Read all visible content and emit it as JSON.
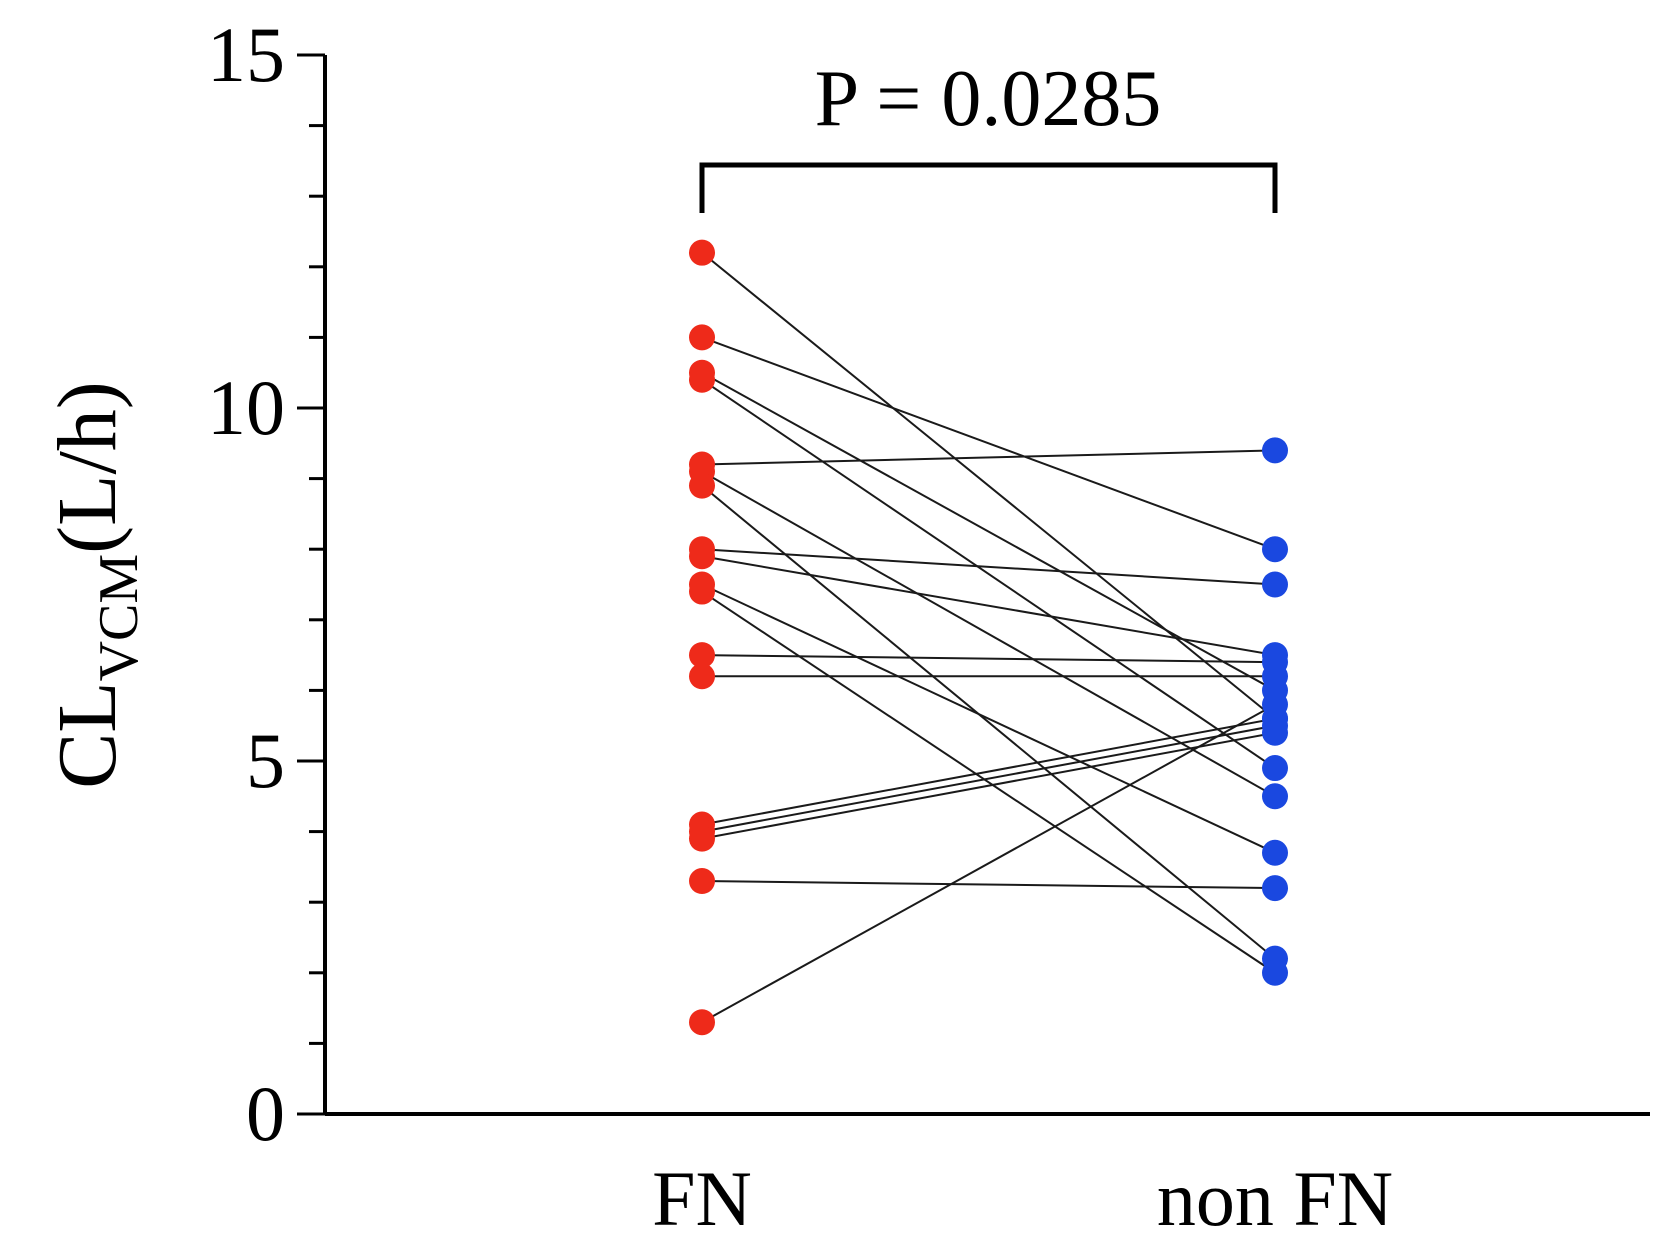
{
  "chart_data": {
    "type": "scatter",
    "ylabel_main": "CL",
    "ylabel_sub": "VCM",
    "ylabel_unit": "(L/h)",
    "ylim": [
      0,
      15
    ],
    "yticks": [
      "0",
      "5",
      "10",
      "15"
    ],
    "categories": [
      "FN",
      "non FN"
    ],
    "annotation": "P = 0.0285",
    "colors": {
      "FN": "#ee2a1a",
      "non FN": "#1a48e0",
      "line": "#1a1a1a"
    },
    "pairs": [
      [
        12.2,
        5.6
      ],
      [
        11.0,
        8.0
      ],
      [
        10.5,
        6.0
      ],
      [
        10.4,
        4.9
      ],
      [
        9.2,
        9.4
      ],
      [
        9.1,
        4.5
      ],
      [
        8.9,
        2.2
      ],
      [
        8.0,
        7.5
      ],
      [
        7.9,
        6.5
      ],
      [
        7.5,
        3.7
      ],
      [
        7.4,
        2.0
      ],
      [
        6.5,
        6.4
      ],
      [
        6.2,
        6.2
      ],
      [
        4.1,
        5.6
      ],
      [
        4.0,
        5.5
      ],
      [
        3.9,
        5.4
      ],
      [
        3.3,
        3.2
      ],
      [
        1.3,
        5.8
      ]
    ]
  }
}
